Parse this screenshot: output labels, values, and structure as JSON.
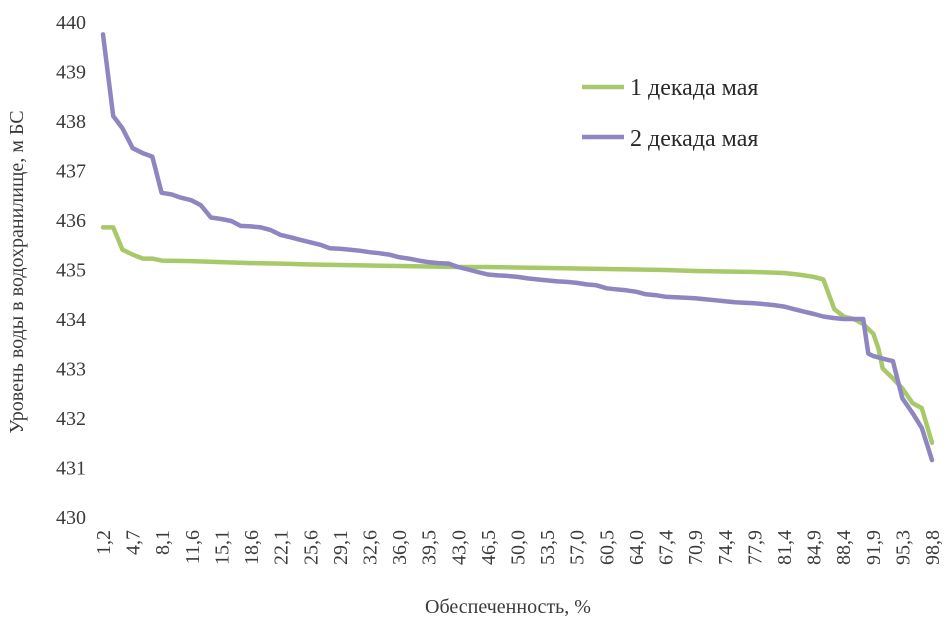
{
  "chart_data": {
    "type": "line",
    "title": "",
    "xlabel": "Обеспеченность, %",
    "ylabel": "Уровень воды в водохранилище, м БС",
    "ylim": [
      430,
      440
    ],
    "xlim": [
      1.2,
      98.8
    ],
    "yticks": [
      430,
      431,
      432,
      433,
      434,
      435,
      436,
      437,
      438,
      439,
      440
    ],
    "xtick_labels": [
      "1,2",
      "4,7",
      "8,1",
      "11,6",
      "15,1",
      "18,6",
      "22,1",
      "25,6",
      "29,1",
      "32,6",
      "36,0",
      "39,5",
      "43,0",
      "46,5",
      "50,0",
      "53,5",
      "57,0",
      "60,5",
      "64,0",
      "67,4",
      "70,9",
      "74,4",
      "77,9",
      "81,4",
      "84,9",
      "88,4",
      "91,9",
      "95,3",
      "98,8"
    ],
    "grid": false,
    "legend_position": "top-right",
    "series": [
      {
        "name": "1 декада мая",
        "color": "#a8c96a",
        "points": [
          [
            1.2,
            435.85
          ],
          [
            2.4,
            435.85
          ],
          [
            3.5,
            435.4
          ],
          [
            4.7,
            435.3
          ],
          [
            5.9,
            435.22
          ],
          [
            7.0,
            435.22
          ],
          [
            8.1,
            435.18
          ],
          [
            11.6,
            435.17
          ],
          [
            15.1,
            435.15
          ],
          [
            18.6,
            435.13
          ],
          [
            22.1,
            435.12
          ],
          [
            25.6,
            435.1
          ],
          [
            29.1,
            435.09
          ],
          [
            32.6,
            435.08
          ],
          [
            36.0,
            435.07
          ],
          [
            39.5,
            435.06
          ],
          [
            43.0,
            435.05
          ],
          [
            46.5,
            435.05
          ],
          [
            50.0,
            435.04
          ],
          [
            53.5,
            435.03
          ],
          [
            57.0,
            435.02
          ],
          [
            60.5,
            435.01
          ],
          [
            64.0,
            435.0
          ],
          [
            67.4,
            434.99
          ],
          [
            70.9,
            434.97
          ],
          [
            74.4,
            434.96
          ],
          [
            77.9,
            434.95
          ],
          [
            81.4,
            434.93
          ],
          [
            83.0,
            434.9
          ],
          [
            84.9,
            434.85
          ],
          [
            86.0,
            434.8
          ],
          [
            87.3,
            434.2
          ],
          [
            88.4,
            434.05
          ],
          [
            89.6,
            434.0
          ],
          [
            90.7,
            433.9
          ],
          [
            91.9,
            433.7
          ],
          [
            92.5,
            433.4
          ],
          [
            93.0,
            433.0
          ],
          [
            94.2,
            432.8
          ],
          [
            95.3,
            432.6
          ],
          [
            96.5,
            432.3
          ],
          [
            97.6,
            432.2
          ],
          [
            98.8,
            431.5
          ]
        ]
      },
      {
        "name": "2 декада мая",
        "color": "#8e86c0",
        "points": [
          [
            1.2,
            439.75
          ],
          [
            2.4,
            438.1
          ],
          [
            3.5,
            437.85
          ],
          [
            4.7,
            437.45
          ],
          [
            5.9,
            437.35
          ],
          [
            7.0,
            437.28
          ],
          [
            8.1,
            436.55
          ],
          [
            9.2,
            436.52
          ],
          [
            10.4,
            436.45
          ],
          [
            11.6,
            436.4
          ],
          [
            12.7,
            436.3
          ],
          [
            13.9,
            436.05
          ],
          [
            15.1,
            436.02
          ],
          [
            16.3,
            435.98
          ],
          [
            17.4,
            435.88
          ],
          [
            18.6,
            435.87
          ],
          [
            19.8,
            435.85
          ],
          [
            20.9,
            435.8
          ],
          [
            22.1,
            435.7
          ],
          [
            23.3,
            435.65
          ],
          [
            24.4,
            435.6
          ],
          [
            25.6,
            435.55
          ],
          [
            26.8,
            435.5
          ],
          [
            27.9,
            435.43
          ],
          [
            29.1,
            435.42
          ],
          [
            30.3,
            435.4
          ],
          [
            31.4,
            435.38
          ],
          [
            32.6,
            435.35
          ],
          [
            33.7,
            435.33
          ],
          [
            34.9,
            435.3
          ],
          [
            36.0,
            435.25
          ],
          [
            37.2,
            435.22
          ],
          [
            38.4,
            435.18
          ],
          [
            39.5,
            435.15
          ],
          [
            40.7,
            435.13
          ],
          [
            41.9,
            435.12
          ],
          [
            43.0,
            435.05
          ],
          [
            44.2,
            435.0
          ],
          [
            45.3,
            434.95
          ],
          [
            46.5,
            434.9
          ],
          [
            47.7,
            434.88
          ],
          [
            48.8,
            434.87
          ],
          [
            50.0,
            434.85
          ],
          [
            51.2,
            434.82
          ],
          [
            52.3,
            434.8
          ],
          [
            53.5,
            434.78
          ],
          [
            54.7,
            434.76
          ],
          [
            55.8,
            434.75
          ],
          [
            57.0,
            434.73
          ],
          [
            58.1,
            434.7
          ],
          [
            59.3,
            434.68
          ],
          [
            60.5,
            434.62
          ],
          [
            61.6,
            434.6
          ],
          [
            62.8,
            434.58
          ],
          [
            64.0,
            434.55
          ],
          [
            65.1,
            434.5
          ],
          [
            66.3,
            434.48
          ],
          [
            67.4,
            434.45
          ],
          [
            68.6,
            434.44
          ],
          [
            69.8,
            434.43
          ],
          [
            70.9,
            434.42
          ],
          [
            72.1,
            434.4
          ],
          [
            73.2,
            434.38
          ],
          [
            74.4,
            434.36
          ],
          [
            75.6,
            434.34
          ],
          [
            76.7,
            434.33
          ],
          [
            77.9,
            434.32
          ],
          [
            79.0,
            434.3
          ],
          [
            80.2,
            434.28
          ],
          [
            81.4,
            434.25
          ],
          [
            82.5,
            434.2
          ],
          [
            83.7,
            434.15
          ],
          [
            84.9,
            434.1
          ],
          [
            86.0,
            434.05
          ],
          [
            87.2,
            434.02
          ],
          [
            88.4,
            434.0
          ],
          [
            89.5,
            434.0
          ],
          [
            90.7,
            434.0
          ],
          [
            91.3,
            433.3
          ],
          [
            91.9,
            433.25
          ],
          [
            93.0,
            433.2
          ],
          [
            94.2,
            433.15
          ],
          [
            95.3,
            432.4
          ],
          [
            96.5,
            432.1
          ],
          [
            97.6,
            431.8
          ],
          [
            98.8,
            431.15
          ]
        ]
      }
    ]
  }
}
